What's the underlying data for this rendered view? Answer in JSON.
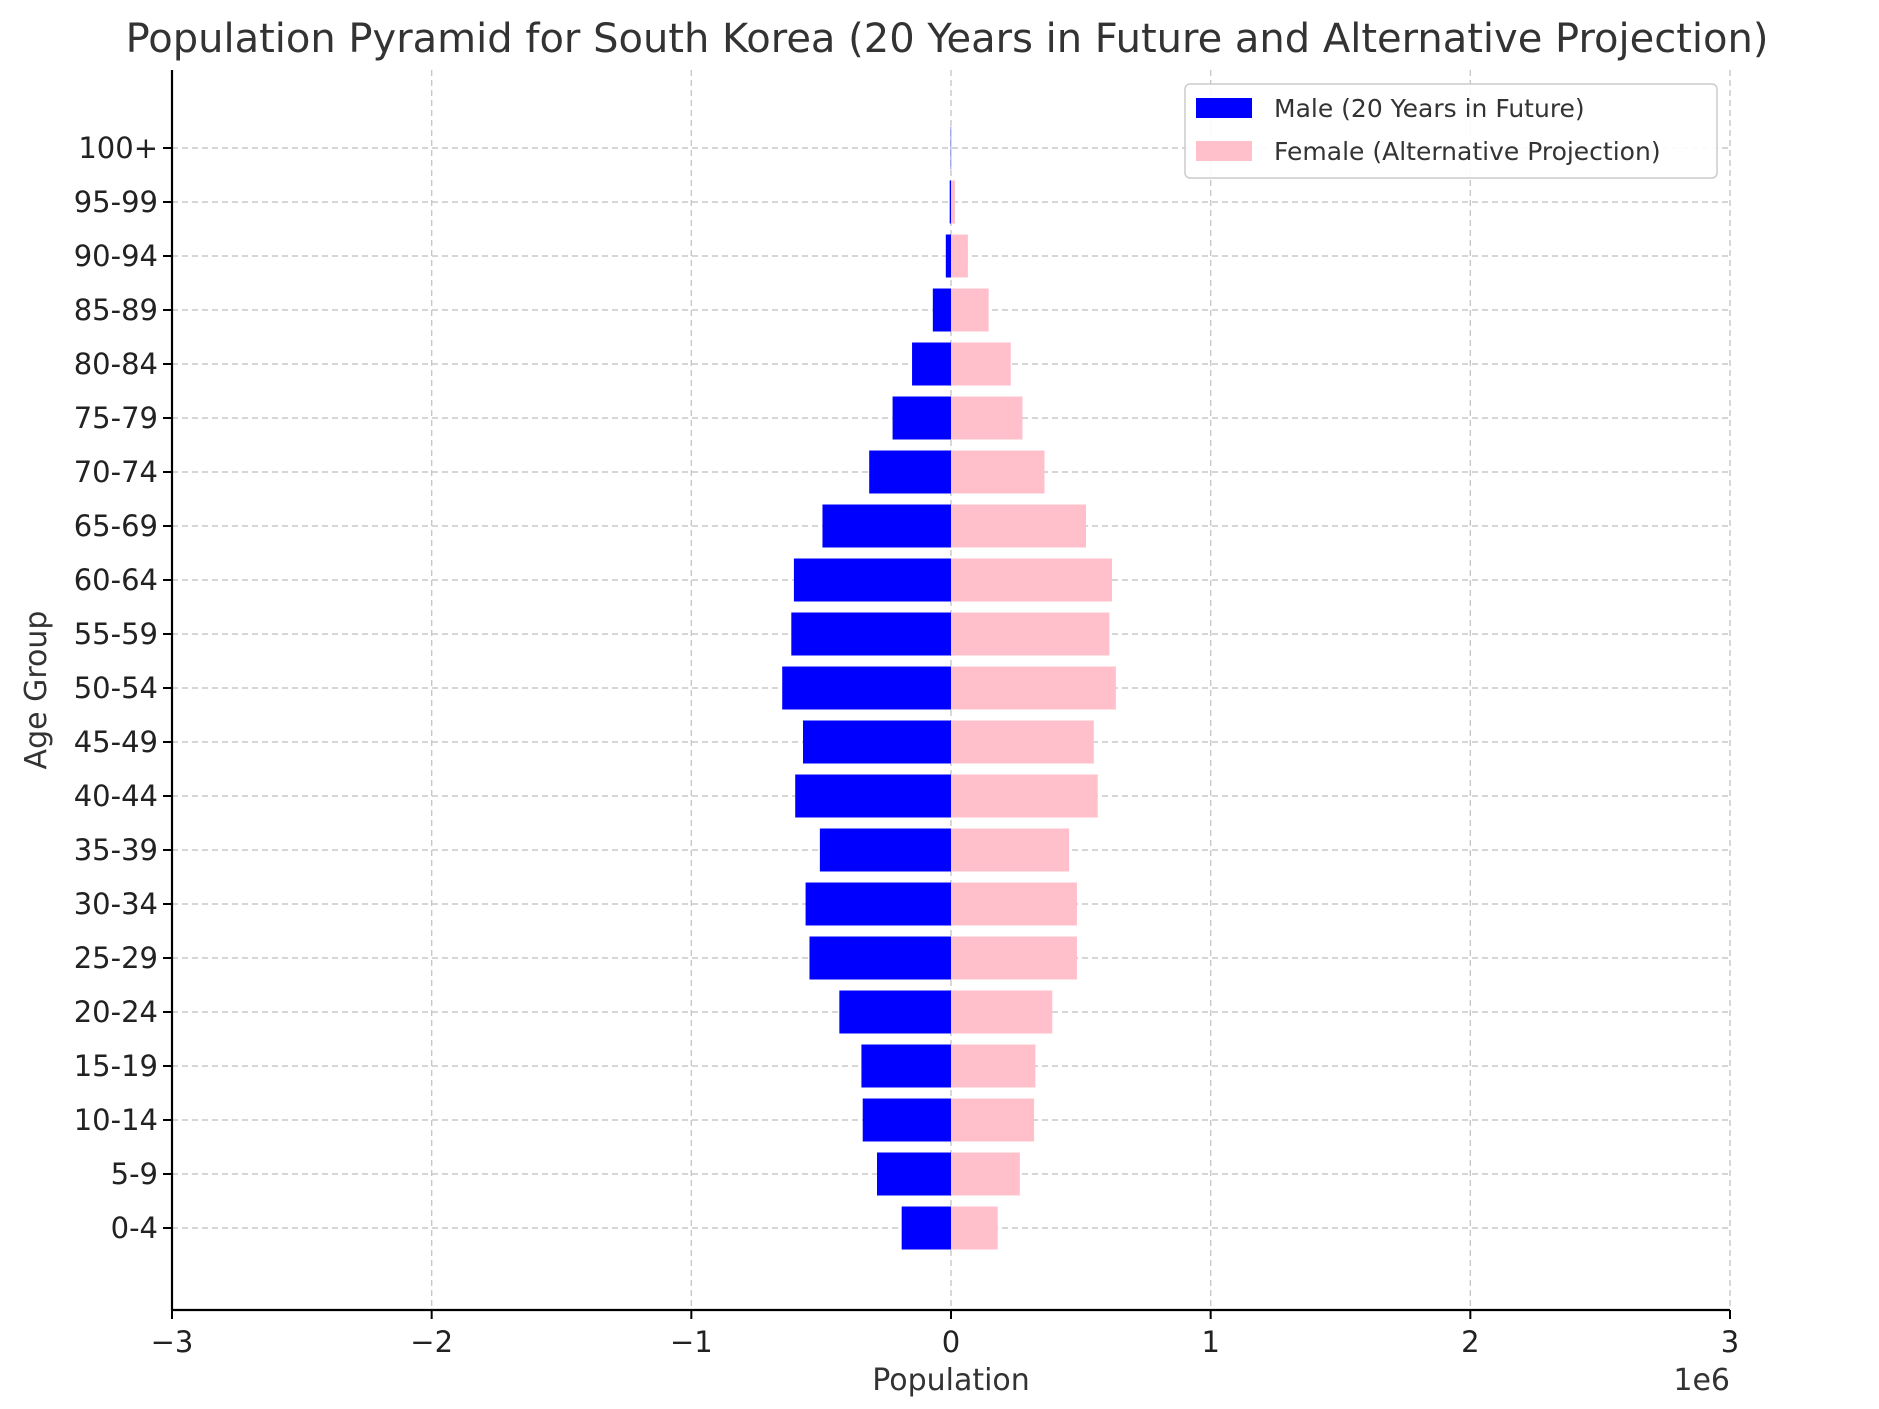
{
  "chart_data": {
    "type": "bar",
    "orientation": "horizontal",
    "title": "Population Pyramid for South Korea (20 Years in Future and Alternative Projection)",
    "xlabel": "Population",
    "ylabel": "Age Group",
    "x_scale_label": "1e6",
    "xlim": [
      -3000000,
      3000000
    ],
    "x_ticks": [
      -3,
      -2,
      -1,
      0,
      1,
      2,
      3
    ],
    "x_tick_labels": [
      "−3",
      "−2",
      "−1",
      "0",
      "1",
      "2",
      "3"
    ],
    "grid": true,
    "legend_position": "top-right",
    "categories": [
      "0-4",
      "5-9",
      "10-14",
      "15-19",
      "20-24",
      "25-29",
      "30-34",
      "35-39",
      "40-44",
      "45-49",
      "50-54",
      "55-59",
      "60-64",
      "65-69",
      "70-74",
      "75-79",
      "80-84",
      "85-89",
      "90-94",
      "95-99",
      "100+"
    ],
    "series": [
      {
        "name": "Male (20 Years in Future)",
        "color": "#0000ff",
        "values": [
          -190000,
          -285000,
          -340000,
          -345000,
          -430000,
          -545000,
          -560000,
          -505000,
          -600000,
          -570000,
          -650000,
          -615000,
          -605000,
          -495000,
          -315000,
          -225000,
          -150000,
          -70000,
          -20000,
          -5000,
          -1000
        ]
      },
      {
        "name": "Female (Alternative Projection)",
        "color": "#ffc0cb",
        "values": [
          180000,
          265000,
          320000,
          325000,
          390000,
          485000,
          485000,
          455000,
          565000,
          550000,
          635000,
          610000,
          620000,
          520000,
          360000,
          275000,
          230000,
          145000,
          65000,
          15000,
          3000
        ]
      }
    ]
  }
}
